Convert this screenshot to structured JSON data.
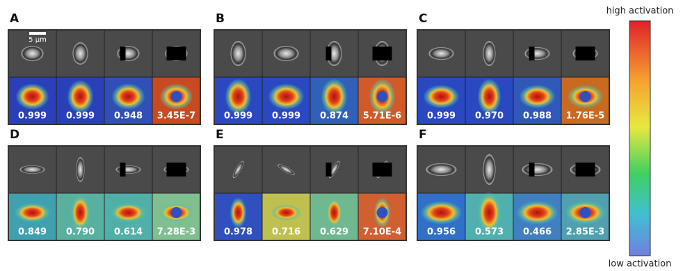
{
  "colorbar": {
    "high_label": "high activation",
    "low_label": "low activation"
  },
  "scale_bar": "5 μm",
  "panels": [
    {
      "letter": "A",
      "scores": [
        "0.999",
        "0.999",
        "0.948",
        "3.45E-7"
      ]
    },
    {
      "letter": "B",
      "scores": [
        "0.999",
        "0.999",
        "0.874",
        "5.71E-6"
      ]
    },
    {
      "letter": "C",
      "scores": [
        "0.999",
        "0.970",
        "0.988",
        "1.76E-5"
      ]
    },
    {
      "letter": "D",
      "scores": [
        "0.849",
        "0.790",
        "0.614",
        "7.28E-3"
      ]
    },
    {
      "letter": "E",
      "scores": [
        "0.978",
        "0.716",
        "0.629",
        "7.10E-4"
      ]
    },
    {
      "letter": "F",
      "scores": [
        "0.956",
        "0.573",
        "0.466",
        "2.85E-3"
      ]
    }
  ]
}
